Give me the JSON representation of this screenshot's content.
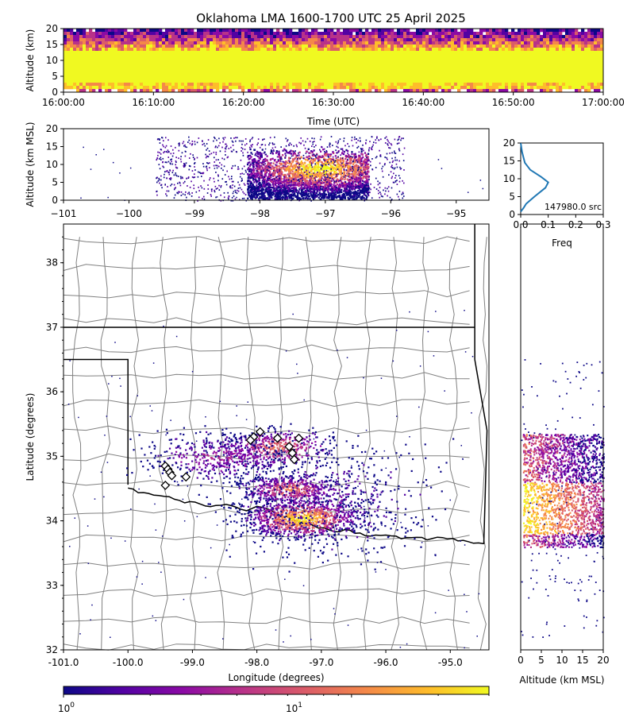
{
  "title": "Oklahoma LMA 1600-1700 UTC 25 April 2025",
  "colors": {
    "background": "#ffffff",
    "colormap": [
      "#0d0887",
      "#5302a3",
      "#8b0aa5",
      "#b83289",
      "#db5c68",
      "#f48849",
      "#febd2a",
      "#f0f921"
    ],
    "histogram_line": "#1f77b4",
    "state_border": "#000000",
    "county_border": "#808080",
    "marker_fill": "#ffffff"
  },
  "colorbar": {
    "scale": "log",
    "tick_labels": [
      "10",
      "10"
    ],
    "tick_exponents": [
      "0",
      "1"
    ]
  },
  "chart_data": [
    {
      "id": "time_height",
      "type": "heatmap",
      "xlabel": "Time (UTC)",
      "ylabel": "Altitude (km)",
      "x_range": [
        "16:00:00",
        "17:00:00"
      ],
      "ylim": [
        0,
        20
      ],
      "x_tick_labels": [
        "16:00:00",
        "16:10:00",
        "16:20:00",
        "16:30:00",
        "16:40:00",
        "16:50:00",
        "17:00:00"
      ],
      "y_tick_labels": [
        "0",
        "5",
        "10",
        "15",
        "20"
      ],
      "core_altitude_km": [
        3,
        13
      ]
    },
    {
      "id": "lon_height",
      "type": "heatmap",
      "ylabel": "Altitude (km MSL)",
      "xlim": [
        -101,
        -94.5
      ],
      "ylim": [
        0,
        20
      ],
      "x_tick_labels": [
        "−101",
        "−100",
        "−99",
        "−98",
        "−97",
        "−96",
        "−95"
      ],
      "y_tick_labels": [
        "0",
        "5",
        "10",
        "15",
        "20"
      ],
      "peak_lon": -97.1,
      "peak_alt_km": 9
    },
    {
      "id": "alt_histogram",
      "type": "line",
      "xlabel": "Freq",
      "xlim": [
        0,
        0.3
      ],
      "ylim": [
        0,
        20
      ],
      "x_tick_labels": [
        "0.0",
        "0.1",
        "0.2",
        "0.3"
      ],
      "y_tick_labels": [
        "0",
        "5",
        "10",
        "15",
        "20"
      ],
      "annotation": "147980.0 src",
      "x": [
        0.0,
        0.01,
        0.02,
        0.05,
        0.09,
        0.1,
        0.075,
        0.035,
        0.015,
        0.005,
        0.0
      ],
      "y": [
        0.8,
        1.8,
        3.0,
        5.0,
        7.5,
        9.0,
        10.5,
        12.5,
        14.5,
        17.5,
        20.0
      ]
    },
    {
      "id": "plan_view",
      "type": "scatter",
      "xlabel": "Longitude (degrees)",
      "ylabel": "Latitude (degrees)",
      "xlim": [
        -101.0,
        -94.4
      ],
      "ylim": [
        32.0,
        38.6
      ],
      "x_tick_labels": [
        "-101.0",
        "-100.0",
        "-99.0",
        "-98.0",
        "-97.0",
        "-96.0",
        "-95.0"
      ],
      "y_tick_labels": [
        "32",
        "33",
        "34",
        "35",
        "36",
        "37",
        "38"
      ],
      "stations": [
        [
          -99.42,
          34.85
        ],
        [
          -99.38,
          34.8
        ],
        [
          -99.35,
          34.75
        ],
        [
          -99.32,
          34.7
        ],
        [
          -99.42,
          34.55
        ],
        [
          -99.1,
          34.68
        ],
        [
          -98.05,
          35.3
        ],
        [
          -98.1,
          35.25
        ],
        [
          -97.95,
          35.38
        ],
        [
          -97.68,
          35.28
        ],
        [
          -97.5,
          35.15
        ],
        [
          -97.45,
          35.05
        ],
        [
          -97.42,
          34.95
        ],
        [
          -97.35,
          35.28
        ]
      ]
    },
    {
      "id": "alt_lat",
      "type": "heatmap",
      "xlabel": "Altitude (km MSL)",
      "xlim": [
        0,
        20
      ],
      "ylim": [
        32.0,
        38.6
      ],
      "x_tick_labels": [
        "0",
        "5",
        "10",
        "15",
        "20"
      ],
      "bright_lat_range": [
        33.8,
        34.6
      ]
    }
  ]
}
